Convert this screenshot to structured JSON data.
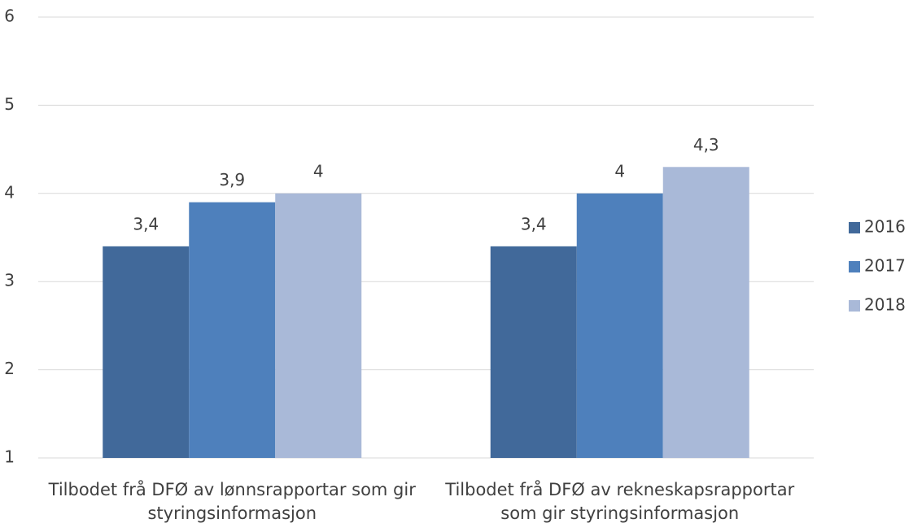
{
  "chart_data": {
    "type": "bar",
    "categories": [
      "Tilbodet frå DFØ av lønnsrapportar som gir styringsinformasjon",
      "Tilbodet frå DFØ av rekneskapsrapportar som gir styringsinformasjon"
    ],
    "series": [
      {
        "name": "2016",
        "color": "#41699a",
        "values": [
          3.4,
          3.4
        ],
        "value_labels": [
          "3,4",
          "3,4"
        ]
      },
      {
        "name": "2017",
        "color": "#4e80bc",
        "values": [
          3.9,
          4
        ],
        "value_labels": [
          "3,9",
          "4"
        ]
      },
      {
        "name": "2018",
        "color": "#a9b9d8",
        "values": [
          4,
          4.3
        ],
        "value_labels": [
          "4",
          "4,3"
        ]
      }
    ],
    "ylim": [
      1,
      6
    ],
    "yticks": [
      1,
      2,
      3,
      4,
      5,
      6
    ],
    "grid": true,
    "legend": "right"
  }
}
